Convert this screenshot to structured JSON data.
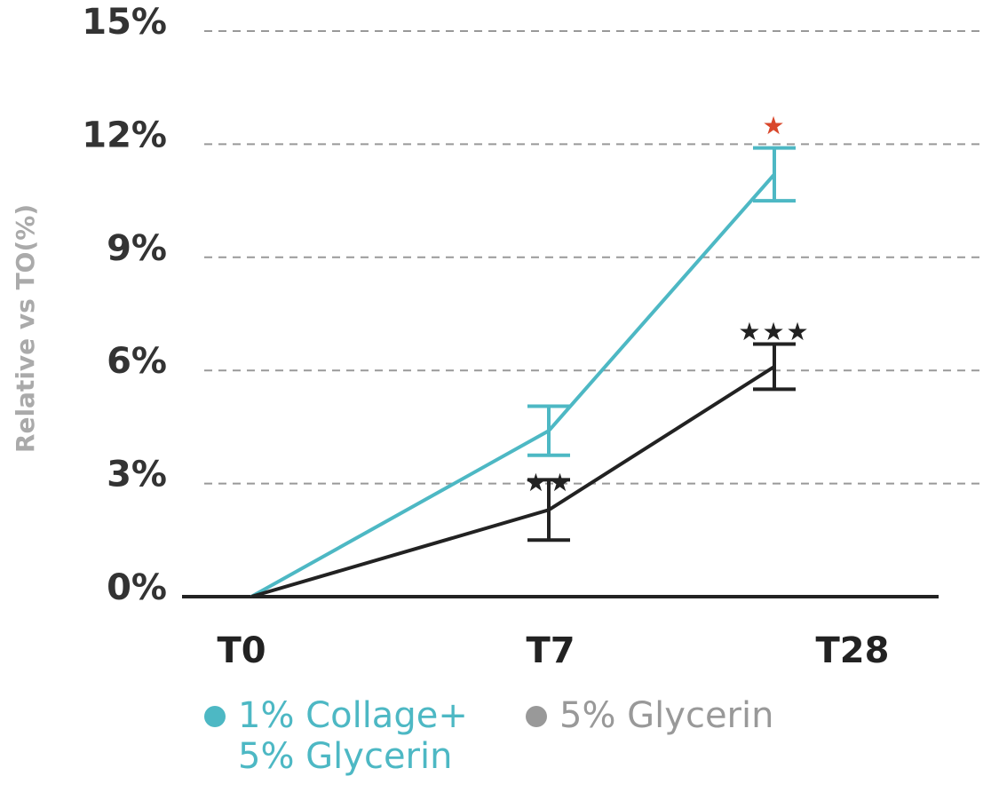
{
  "chart_data": {
    "type": "line",
    "y_label": "Relative vs TO(%)",
    "categories": [
      "T0",
      "T7",
      "T28"
    ],
    "series": [
      {
        "name": "1% Collage+ 5% Glycerin",
        "color": "#4db8c4",
        "values": [
          0,
          4.4,
          11.2
        ],
        "errors": [
          null,
          0.65,
          0.7
        ]
      },
      {
        "name": "5% Glycerin",
        "color": "#222222",
        "legend_color": "#999999",
        "values": [
          0,
          2.3,
          6.1
        ],
        "errors": [
          null,
          0.8,
          0.6
        ]
      }
    ],
    "ylim": [
      0,
      15
    ],
    "yticks": [
      {
        "value": 0,
        "label": "0%"
      },
      {
        "value": 3,
        "label": "3%"
      },
      {
        "value": 6,
        "label": "6%"
      },
      {
        "value": 9,
        "label": "9%"
      },
      {
        "value": 12,
        "label": "12%"
      },
      {
        "value": 15,
        "label": "15%"
      }
    ],
    "grid": true,
    "annotations": [
      {
        "text": "★",
        "color": "#d9472b"
      },
      {
        "text": "★★",
        "color": "#222222"
      },
      {
        "text": "★★★",
        "color": "#222222"
      }
    ]
  }
}
